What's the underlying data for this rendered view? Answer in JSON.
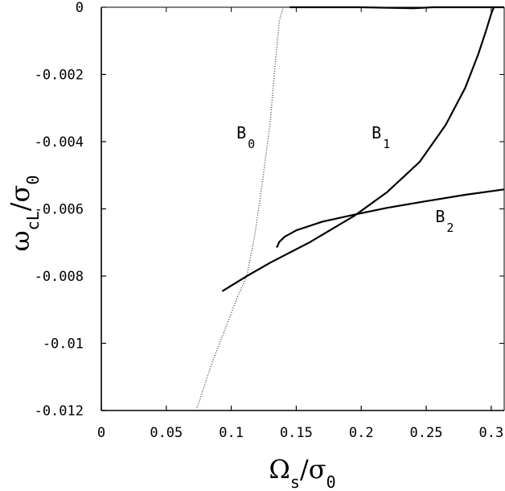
{
  "chart_data": {
    "type": "line",
    "title": "",
    "xlabel": {
      "main": "Ω",
      "sub1": "s",
      "slash": "/",
      "main2": "σ",
      "sub2": "0"
    },
    "ylabel": {
      "main": "ω",
      "sub1": "cL",
      "slash": "/",
      "main2": "σ",
      "sub2": "0"
    },
    "xlim": [
      0,
      0.31
    ],
    "ylim": [
      -0.012,
      0
    ],
    "x_ticks": [
      "0",
      "0.05",
      "0.1",
      "0.15",
      "0.2",
      "0.25",
      "0.3"
    ],
    "x_tick_values": [
      0,
      0.05,
      0.1,
      0.15,
      0.2,
      0.25,
      0.3
    ],
    "y_ticks": [
      "0",
      "-0.002",
      "-0.004",
      "-0.006",
      "-0.008",
      "-0.01",
      "-0.012"
    ],
    "y_tick_values": [
      0,
      -0.002,
      -0.004,
      -0.006,
      -0.008,
      -0.01,
      -0.012
    ],
    "grid": false,
    "series": [
      {
        "name": "B0",
        "label_main": "B",
        "label_sub": "0",
        "style": "dotted",
        "segments": [
          [
            [
              0.073,
              -0.012
            ],
            [
              0.085,
              -0.0106
            ],
            [
              0.095,
              -0.0096
            ],
            [
              0.105,
              -0.0086
            ],
            [
              0.112,
              -0.008
            ],
            [
              0.118,
              -0.0068
            ],
            [
              0.124,
              -0.0052
            ],
            [
              0.13,
              -0.0034
            ],
            [
              0.134,
              -0.0016
            ],
            [
              0.137,
              -0.0004
            ],
            [
              0.14,
              0.0
            ]
          ]
        ]
      },
      {
        "name": "B1",
        "label_main": "B",
        "label_sub": "1",
        "style": "solid",
        "segments": [
          [
            [
              0.093,
              -0.00845
            ],
            [
              0.112,
              -0.008
            ],
            [
              0.13,
              -0.0076
            ],
            [
              0.16,
              -0.007
            ],
            [
              0.195,
              -0.0062
            ],
            [
              0.22,
              -0.0055
            ],
            [
              0.245,
              -0.0046
            ],
            [
              0.265,
              -0.0035
            ],
            [
              0.28,
              -0.0024
            ],
            [
              0.29,
              -0.0014
            ],
            [
              0.296,
              -0.0007
            ],
            [
              0.3,
              -0.0002
            ],
            [
              0.302,
              0.0
            ]
          ],
          [
            [
              0.145,
              0.0
            ],
            [
              0.2,
              0.0
            ],
            [
              0.24,
              -3e-05
            ],
            [
              0.255,
              0.0
            ],
            [
              0.31,
              0.0
            ]
          ]
        ]
      },
      {
        "name": "B2",
        "label_main": "B",
        "label_sub": "2",
        "style": "solid",
        "segments": [
          [
            [
              0.135,
              -0.00715
            ],
            [
              0.137,
              -0.00698
            ],
            [
              0.141,
              -0.00683
            ],
            [
              0.15,
              -0.00664
            ],
            [
              0.17,
              -0.00638
            ],
            [
              0.195,
              -0.00617
            ],
            [
              0.22,
              -0.00597
            ],
            [
              0.25,
              -0.00577
            ],
            [
              0.28,
              -0.00558
            ],
            [
              0.31,
              -0.00542
            ]
          ]
        ]
      }
    ],
    "annotations": [
      {
        "series": "B0",
        "x": 0.104,
        "y": -0.0039
      },
      {
        "series": "B1",
        "x": 0.208,
        "y": -0.0039
      },
      {
        "series": "B2",
        "x": 0.257,
        "y": -0.0064
      }
    ]
  }
}
